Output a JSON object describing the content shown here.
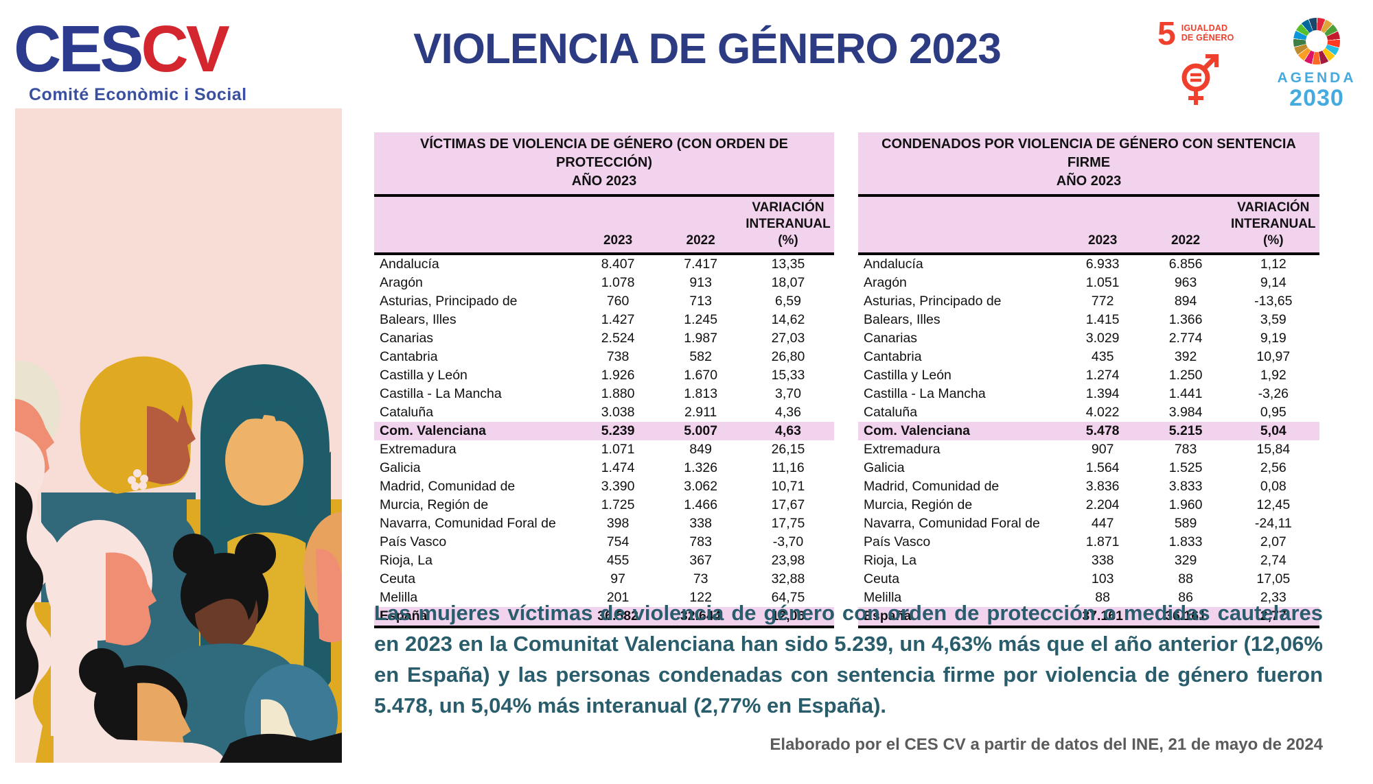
{
  "header": {
    "logo_ces": "CES",
    "logo_cv": "CV",
    "logo_subtitle": "Comité Econòmic i Social",
    "title": "VIOLENCIA DE GÉNERO 2023",
    "sdg5_number": "5",
    "sdg5_label_line1": "IGUALDAD",
    "sdg5_label_line2": "DE GÉNERO",
    "agenda_line1": "AGENDA",
    "agenda_line2": "2030",
    "sdg_wheel_colors": [
      "#E5243B",
      "#DDA63A",
      "#4C9F38",
      "#C5192D",
      "#FF3A21",
      "#26BDE2",
      "#FCC30B",
      "#A21942",
      "#FD6925",
      "#DD1367",
      "#FD9D24",
      "#BF8B2E",
      "#3F7E44",
      "#0A97D9",
      "#56C02B",
      "#00689D",
      "#19486A"
    ]
  },
  "tables": {
    "victims": {
      "title": "VÍCTIMAS DE VIOLENCIA DE GÉNERO (CON ORDEN DE PROTECCIÓN)",
      "subtitle": "AÑO 2023",
      "col_2023": "2023",
      "col_2022": "2022",
      "col_variation_line1": "VARIACIÓN",
      "col_variation_line2": "INTERANUAL (%)",
      "rows": [
        {
          "region": "Andalucía",
          "y2023": "8.407",
          "y2022": "7.417",
          "variation": "13,35",
          "highlight": false
        },
        {
          "region": "Aragón",
          "y2023": "1.078",
          "y2022": "913",
          "variation": "18,07",
          "highlight": false
        },
        {
          "region": "Asturias, Principado de",
          "y2023": "760",
          "y2022": "713",
          "variation": "6,59",
          "highlight": false
        },
        {
          "region": "Balears, Illes",
          "y2023": "1.427",
          "y2022": "1.245",
          "variation": "14,62",
          "highlight": false
        },
        {
          "region": "Canarias",
          "y2023": "2.524",
          "y2022": "1.987",
          "variation": "27,03",
          "highlight": false
        },
        {
          "region": "Cantabria",
          "y2023": "738",
          "y2022": "582",
          "variation": "26,80",
          "highlight": false
        },
        {
          "region": "Castilla y León",
          "y2023": "1.926",
          "y2022": "1.670",
          "variation": "15,33",
          "highlight": false
        },
        {
          "region": "Castilla - La Mancha",
          "y2023": "1.880",
          "y2022": "1.813",
          "variation": "3,70",
          "highlight": false
        },
        {
          "region": "Cataluña",
          "y2023": "3.038",
          "y2022": "2.911",
          "variation": "4,36",
          "highlight": false
        },
        {
          "region": "Com. Valenciana",
          "y2023": "5.239",
          "y2022": "5.007",
          "variation": "4,63",
          "highlight": true
        },
        {
          "region": "Extremadura",
          "y2023": "1.071",
          "y2022": "849",
          "variation": "26,15",
          "highlight": false
        },
        {
          "region": "Galicia",
          "y2023": "1.474",
          "y2022": "1.326",
          "variation": "11,16",
          "highlight": false
        },
        {
          "region": "Madrid, Comunidad de",
          "y2023": "3.390",
          "y2022": "3.062",
          "variation": "10,71",
          "highlight": false
        },
        {
          "region": "Murcia, Región de",
          "y2023": "1.725",
          "y2022": "1.466",
          "variation": "17,67",
          "highlight": false
        },
        {
          "region": "Navarra, Comunidad Foral de",
          "y2023": "398",
          "y2022": "338",
          "variation": "17,75",
          "highlight": false
        },
        {
          "region": "País Vasco",
          "y2023": "754",
          "y2022": "783",
          "variation": "-3,70",
          "highlight": false
        },
        {
          "region": "Rioja, La",
          "y2023": "455",
          "y2022": "367",
          "variation": "23,98",
          "highlight": false
        },
        {
          "region": "Ceuta",
          "y2023": "97",
          "y2022": "73",
          "variation": "32,88",
          "highlight": false
        },
        {
          "region": "Melilla",
          "y2023": "201",
          "y2022": "122",
          "variation": "64,75",
          "highlight": false
        },
        {
          "region": "España",
          "y2023": "36.582",
          "y2022": "32.644",
          "variation": "12,06",
          "highlight": true
        }
      ]
    },
    "convicted": {
      "title": "CONDENADOS POR VIOLENCIA DE GÉNERO CON SENTENCIA FIRME",
      "subtitle": "AÑO 2023",
      "col_2023": "2023",
      "col_2022": "2022",
      "col_variation_line1": "VARIACIÓN",
      "col_variation_line2": "INTERANUAL (%)",
      "rows": [
        {
          "region": "Andalucía",
          "y2023": "6.933",
          "y2022": "6.856",
          "variation": "1,12",
          "highlight": false
        },
        {
          "region": "Aragón",
          "y2023": "1.051",
          "y2022": "963",
          "variation": "9,14",
          "highlight": false
        },
        {
          "region": "Asturias, Principado de",
          "y2023": "772",
          "y2022": "894",
          "variation": "-13,65",
          "highlight": false
        },
        {
          "region": "Balears, Illes",
          "y2023": "1.415",
          "y2022": "1.366",
          "variation": "3,59",
          "highlight": false
        },
        {
          "region": "Canarias",
          "y2023": "3.029",
          "y2022": "2.774",
          "variation": "9,19",
          "highlight": false
        },
        {
          "region": "Cantabria",
          "y2023": "435",
          "y2022": "392",
          "variation": "10,97",
          "highlight": false
        },
        {
          "region": "Castilla y León",
          "y2023": "1.274",
          "y2022": "1.250",
          "variation": "1,92",
          "highlight": false
        },
        {
          "region": "Castilla - La Mancha",
          "y2023": "1.394",
          "y2022": "1.441",
          "variation": "-3,26",
          "highlight": false
        },
        {
          "region": "Cataluña",
          "y2023": "4.022",
          "y2022": "3.984",
          "variation": "0,95",
          "highlight": false
        },
        {
          "region": "Com. Valenciana",
          "y2023": "5.478",
          "y2022": "5.215",
          "variation": "5,04",
          "highlight": true
        },
        {
          "region": "Extremadura",
          "y2023": "907",
          "y2022": "783",
          "variation": "15,84",
          "highlight": false
        },
        {
          "region": "Galicia",
          "y2023": "1.564",
          "y2022": "1.525",
          "variation": "2,56",
          "highlight": false
        },
        {
          "region": "Madrid, Comunidad de",
          "y2023": "3.836",
          "y2022": "3.833",
          "variation": "0,08",
          "highlight": false
        },
        {
          "region": "Murcia, Región de",
          "y2023": "2.204",
          "y2022": "1.960",
          "variation": "12,45",
          "highlight": false
        },
        {
          "region": "Navarra, Comunidad Foral de",
          "y2023": "447",
          "y2022": "589",
          "variation": "-24,11",
          "highlight": false
        },
        {
          "region": "País Vasco",
          "y2023": "1.871",
          "y2022": "1.833",
          "variation": "2,07",
          "highlight": false
        },
        {
          "region": "Rioja, La",
          "y2023": "338",
          "y2022": "329",
          "variation": "2,74",
          "highlight": false
        },
        {
          "region": "Ceuta",
          "y2023": "103",
          "y2022": "88",
          "variation": "17,05",
          "highlight": false
        },
        {
          "region": "Melilla",
          "y2023": "88",
          "y2022": "86",
          "variation": "2,33",
          "highlight": false
        },
        {
          "region": "España",
          "y2023": "37.161",
          "y2022": "36.161",
          "variation": "2,77",
          "highlight": true
        }
      ]
    }
  },
  "summary_text": "Las mujeres víctimas de violencia de género con orden de protección o medidas cautelares en 2023 en la Comunitat Valenciana han sido 5.239, un 4,63% más que el año anterior (12,06% en España) y las personas condenadas con sentencia firme por violencia de género fueron 5.478, un 5,04% más interanual (2,77% en España).",
  "source_text": "Elaborado por el CES CV a partir de datos del INE, 21 de mayo de 2024",
  "colors": {
    "table_header_pink": "#F2D3EE",
    "highlight_row_pink": "#F2D3EE",
    "title_navy": "#2D3C82",
    "ces_blue": "#2C3B8E",
    "cv_red": "#D3262E",
    "logo_subtitle_blue": "#3A4FA0",
    "sdg5_red": "#EF402D",
    "agenda_blue": "#45AADD",
    "summary_teal": "#2A5D6C",
    "source_gray": "#5B5B5B",
    "illustration_pink": "#F8DCD6"
  }
}
